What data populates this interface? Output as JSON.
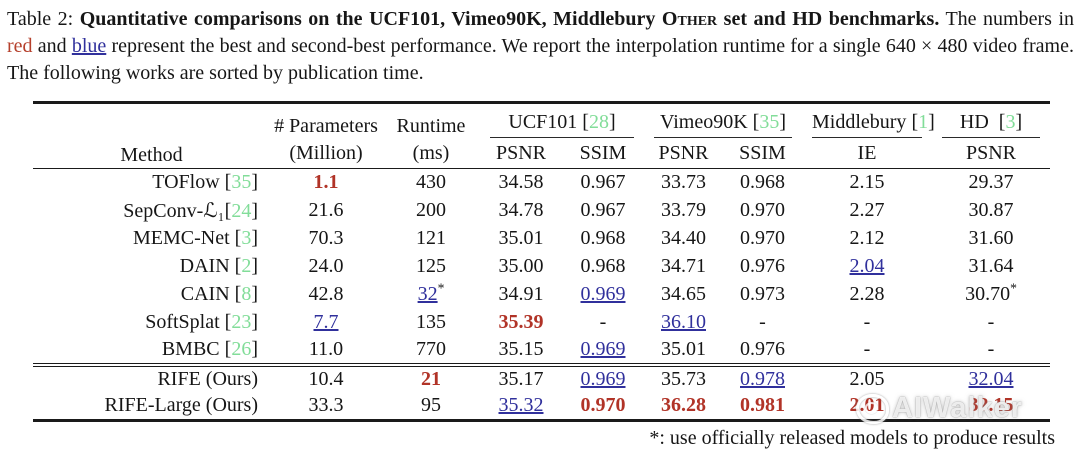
{
  "caption": {
    "prefix": "Table 2: ",
    "bold_before_sc": "Quantitative comparisons on the UCF101, Vimeo90K, Middlebury ",
    "smallcaps": "Other",
    "bold_after_sc": " set and HD benchmarks.",
    "normal_1": " The numbers in ",
    "red_word": "red",
    "normal_2": " and ",
    "blue_word": "blue",
    "normal_3": " represent the best and second-best performance. We report the interpolation runtime for a single 640 × 480 video frame. The following works are sorted by publication time."
  },
  "table": {
    "method_header": "Method",
    "params_header": {
      "line1": "# Parameters",
      "line2": "(Million)"
    },
    "runtime_header": {
      "line1": "Runtime",
      "line2": "(ms)"
    },
    "groups": [
      {
        "name": "UCF101",
        "cite": "28",
        "subs": [
          "PSNR",
          "SSIM"
        ]
      },
      {
        "name": "Vimeo90K",
        "cite": "35",
        "subs": [
          "PSNR",
          "SSIM"
        ]
      },
      {
        "name": "Middlebury",
        "cite": "1",
        "subs": [
          "IE"
        ]
      },
      {
        "name": "HD",
        "cite": "3",
        "subs": [
          "PSNR"
        ]
      }
    ],
    "rows": [
      {
        "method": "TOFlow",
        "cite": "35",
        "tight": false,
        "cells": [
          {
            "v": "1.1",
            "m": "best"
          },
          {
            "v": "430"
          },
          {
            "v": "34.58"
          },
          {
            "v": "0.967"
          },
          {
            "v": "33.73"
          },
          {
            "v": "0.968"
          },
          {
            "v": "2.15"
          },
          {
            "v": "29.37"
          }
        ]
      },
      {
        "method": "SepConv-ℒ₁",
        "cite": "24",
        "tight": true,
        "cells": [
          {
            "v": "21.6"
          },
          {
            "v": "200"
          },
          {
            "v": "34.78"
          },
          {
            "v": "0.967"
          },
          {
            "v": "33.79"
          },
          {
            "v": "0.970"
          },
          {
            "v": "2.27"
          },
          {
            "v": "30.87"
          }
        ]
      },
      {
        "method": "MEMC-Net",
        "cite": "3",
        "tight": false,
        "cells": [
          {
            "v": "70.3"
          },
          {
            "v": "121"
          },
          {
            "v": "35.01"
          },
          {
            "v": "0.968"
          },
          {
            "v": "34.40"
          },
          {
            "v": "0.970"
          },
          {
            "v": "2.12"
          },
          {
            "v": "31.60"
          }
        ]
      },
      {
        "method": "DAIN",
        "cite": "2",
        "tight": false,
        "cells": [
          {
            "v": "24.0"
          },
          {
            "v": "125"
          },
          {
            "v": "35.00"
          },
          {
            "v": "0.968"
          },
          {
            "v": "34.71"
          },
          {
            "v": "0.976"
          },
          {
            "v": "2.04",
            "m": "second"
          },
          {
            "v": "31.64"
          }
        ]
      },
      {
        "method": "CAIN",
        "cite": "8",
        "tight": false,
        "cells": [
          {
            "v": "42.8"
          },
          {
            "v": "32",
            "m": "second",
            "sup": "*"
          },
          {
            "v": "34.91"
          },
          {
            "v": "0.969",
            "m": "second"
          },
          {
            "v": "34.65"
          },
          {
            "v": "0.973"
          },
          {
            "v": "2.28"
          },
          {
            "v": "30.70",
            "sup": "*"
          }
        ]
      },
      {
        "method": "SoftSplat",
        "cite": "23",
        "tight": false,
        "cells": [
          {
            "v": "7.7",
            "m": "second"
          },
          {
            "v": "135"
          },
          {
            "v": "35.39",
            "m": "best"
          },
          {
            "v": "-"
          },
          {
            "v": "36.10",
            "m": "second"
          },
          {
            "v": "-"
          },
          {
            "v": "-"
          },
          {
            "v": "-"
          }
        ]
      },
      {
        "method": "BMBC",
        "cite": "26",
        "tight": false,
        "sep_after": true,
        "cells": [
          {
            "v": "11.0"
          },
          {
            "v": "770"
          },
          {
            "v": "35.15"
          },
          {
            "v": "0.969",
            "m": "second"
          },
          {
            "v": "35.01"
          },
          {
            "v": "0.976"
          },
          {
            "v": "-"
          },
          {
            "v": "-"
          }
        ]
      },
      {
        "method": "RIFE (Ours)",
        "cite": null,
        "tight": false,
        "cells": [
          {
            "v": "10.4"
          },
          {
            "v": "21",
            "m": "best"
          },
          {
            "v": "35.17"
          },
          {
            "v": "0.969",
            "m": "second"
          },
          {
            "v": "35.73"
          },
          {
            "v": "0.978",
            "m": "second"
          },
          {
            "v": "2.05"
          },
          {
            "v": "32.04",
            "m": "second"
          }
        ]
      },
      {
        "method": "RIFE-Large (Ours)",
        "cite": null,
        "tight": false,
        "cells": [
          {
            "v": "33.3"
          },
          {
            "v": "95"
          },
          {
            "v": "35.32",
            "m": "second"
          },
          {
            "v": "0.970",
            "m": "best"
          },
          {
            "v": "36.28",
            "m": "best"
          },
          {
            "v": "0.981",
            "m": "best"
          },
          {
            "v": "2.01",
            "m": "best"
          },
          {
            "v": "32.15",
            "m": "best"
          }
        ]
      }
    ]
  },
  "footnote": "*: use officially released models to produce results",
  "watermark": {
    "text": "AIWalker"
  },
  "colors": {
    "best_red": "#b13327",
    "second_blue": "#30309c",
    "citation_green": "#82dd99"
  }
}
